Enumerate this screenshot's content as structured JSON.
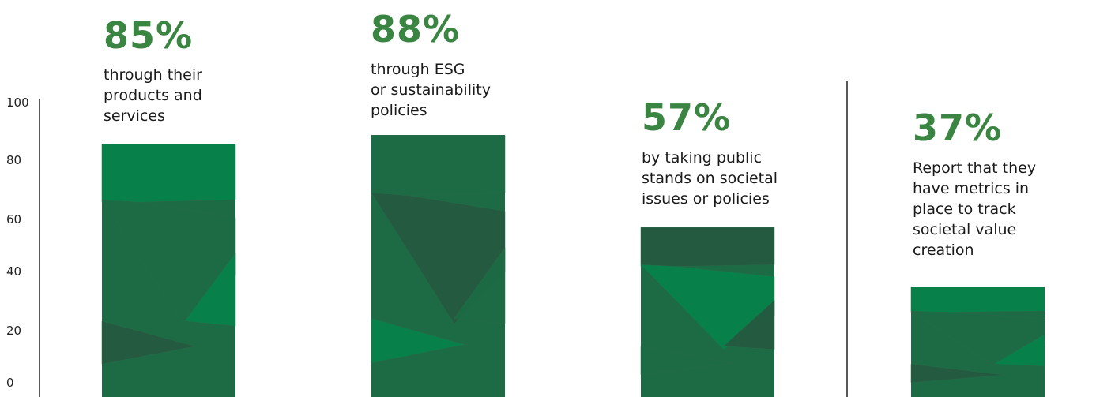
{
  "chart_data": {
    "type": "bar",
    "ylim": [
      0,
      100
    ],
    "yticks": [
      "0",
      "20",
      "40",
      "60",
      "80",
      "100"
    ],
    "bars": [
      {
        "label": "85%",
        "value": 85,
        "text": [
          "through their",
          "products and",
          "services"
        ]
      },
      {
        "label": "88%",
        "value": 88,
        "text": [
          "through ESG",
          "or sustainability",
          "policies"
        ]
      },
      {
        "label": "57%",
        "value": 57,
        "text": [
          "by taking public",
          "stands on societal",
          "issues or policies"
        ]
      },
      {
        "label": "37%",
        "value": 37,
        "text": [
          "Report that they",
          "have metrics in",
          "place to track",
          "societal value",
          "creation"
        ]
      }
    ]
  },
  "colors": {
    "accent": "#3b8543",
    "bar_light": "#07824a",
    "bar_mid": "#1c6b45",
    "bar_dark": "#245a40"
  }
}
